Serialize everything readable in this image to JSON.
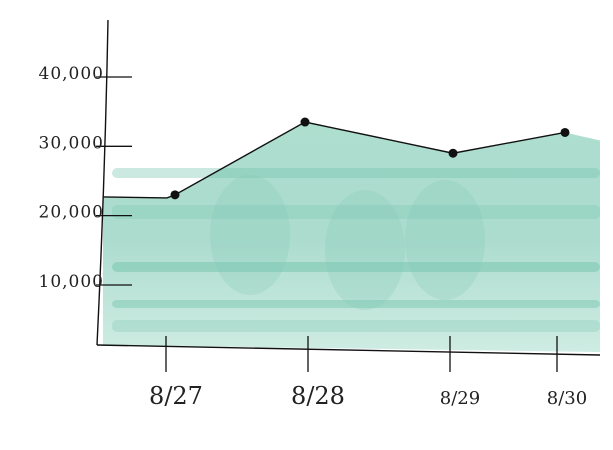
{
  "chart_data": {
    "type": "area",
    "categories": [
      "8/27",
      "8/28",
      "8/29",
      "8/30"
    ],
    "series": [
      {
        "values": [
          23000,
          33500,
          29000,
          32000
        ]
      }
    ],
    "yticks": [
      "10,000",
      "20,000",
      "30,000",
      "40,000"
    ],
    "ylim": [
      0,
      50000
    ],
    "grid": false,
    "legend": "none",
    "colors": {
      "fill": "#8fd0bd",
      "line": "#111111",
      "point": "#111111"
    }
  }
}
